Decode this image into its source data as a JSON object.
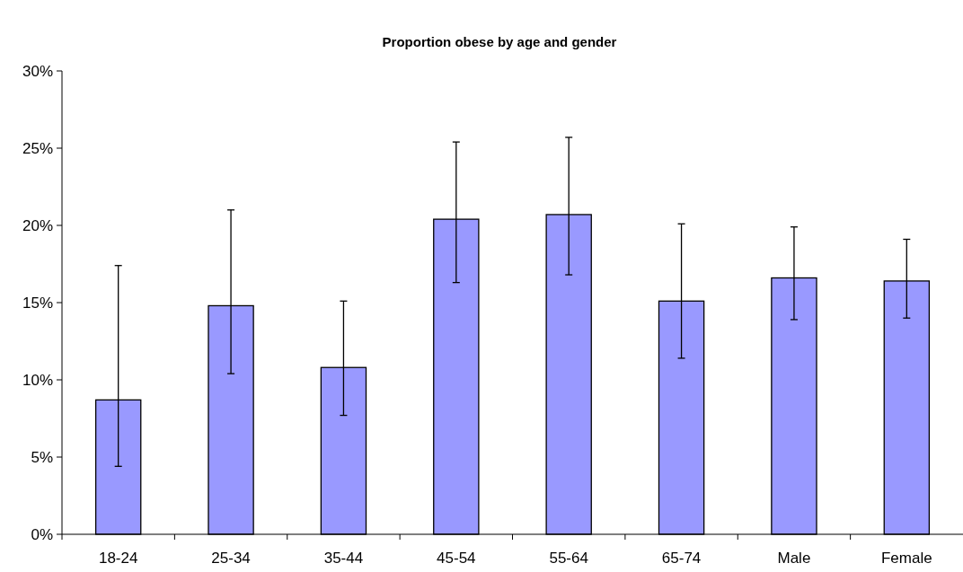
{
  "chart_data": {
    "type": "bar",
    "title": "Proportion obese by age and gender",
    "categories": [
      "18-24",
      "25-34",
      "35-44",
      "45-54",
      "55-64",
      "65-74",
      "Male",
      "Female"
    ],
    "values": [
      8.7,
      14.8,
      10.8,
      20.4,
      20.7,
      15.1,
      16.6,
      16.4
    ],
    "errors": [
      [
        4.4,
        17.4
      ],
      [
        10.4,
        21.0
      ],
      [
        7.7,
        15.1
      ],
      [
        16.3,
        25.4
      ],
      [
        16.8,
        25.7
      ],
      [
        11.4,
        20.1
      ],
      [
        13.9,
        19.9
      ],
      [
        14.0,
        19.1
      ]
    ],
    "color": "#9999ff",
    "ylim": [
      0,
      30
    ],
    "yticks": [
      {
        "value": 0,
        "label": "0%"
      },
      {
        "value": 5,
        "label": "5%"
      },
      {
        "value": 10,
        "label": "10%"
      },
      {
        "value": 15,
        "label": "15%"
      },
      {
        "value": 20,
        "label": "20%"
      },
      {
        "value": 25,
        "label": "25%"
      },
      {
        "value": 30,
        "label": "30%"
      }
    ],
    "grid": false
  }
}
